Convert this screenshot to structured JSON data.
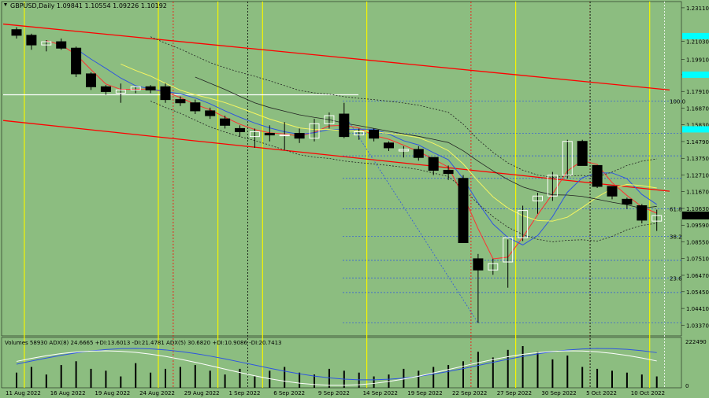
{
  "header": {
    "text": "GBPUSD,Daily  1.09841 1.10554 1.09226 1.10192"
  },
  "volume_panel": {
    "title": "Volumes 58930  ADX(8) 24.6665 +DI:13.6013 -DI:21.4781  ADX(5) 30.6820 +DI:10.9086 -DI:20.7413",
    "axis_labels": [
      "222490",
      "0"
    ]
  },
  "colors": {
    "background": "#8cbd80",
    "bull": "#ffffff",
    "bear": "#000000",
    "channel": "#ff0000",
    "blue_line": "#2e55e0",
    "yellow_line": "#f5f560",
    "accent": "#00ffff",
    "vertical_yellow": "#f5f500",
    "vertical_red": "#ff0000"
  },
  "chart_data": {
    "type": "candlestick",
    "symbol": "GBPUSD",
    "timeframe": "Daily",
    "y_ticks": [
      "1.23110",
      "1.21030",
      "1.19910",
      "1.18950",
      "1.17910",
      "1.16870",
      "1.15830",
      "1.14790",
      "1.13750",
      "1.12710",
      "1.11670",
      "1.10630",
      "1.09590",
      "1.08550",
      "1.07510",
      "1.06470",
      "1.05450",
      "1.04410",
      "1.03370"
    ],
    "price_tag": "1.10192",
    "x_labels": [
      "11 Aug 2022",
      "16 Aug 2022",
      "19 Aug 2022",
      "24 Aug 2022",
      "29 Aug 2022",
      "1 Sep 2022",
      "6 Sep 2022",
      "9 Sep 2022",
      "14 Sep 2022",
      "19 Sep 2022",
      "22 Sep 2022",
      "27 Sep 2022",
      "30 Sep 2022",
      "5 Oct 2022",
      "10 Oct 2022"
    ],
    "fib_labels": [
      "100.0",
      "61.8",
      "38.2",
      "23.6"
    ],
    "candles": [
      {
        "o": 1.2175,
        "h": 1.219,
        "l": 1.212,
        "c": 1.214
      },
      {
        "o": 1.214,
        "h": 1.215,
        "l": 1.205,
        "c": 1.208
      },
      {
        "o": 1.208,
        "h": 1.211,
        "l": 1.204,
        "c": 1.21
      },
      {
        "o": 1.21,
        "h": 1.212,
        "l": 1.205,
        "c": 1.206
      },
      {
        "o": 1.206,
        "h": 1.207,
        "l": 1.188,
        "c": 1.19
      },
      {
        "o": 1.19,
        "h": 1.191,
        "l": 1.18,
        "c": 1.182
      },
      {
        "o": 1.182,
        "h": 1.183,
        "l": 1.177,
        "c": 1.179
      },
      {
        "o": 1.178,
        "h": 1.184,
        "l": 1.172,
        "c": 1.18
      },
      {
        "o": 1.18,
        "h": 1.182,
        "l": 1.178,
        "c": 1.182
      },
      {
        "o": 1.182,
        "h": 1.183,
        "l": 1.178,
        "c": 1.18
      },
      {
        "o": 1.182,
        "h": 1.184,
        "l": 1.172,
        "c": 1.174
      },
      {
        "o": 1.174,
        "h": 1.176,
        "l": 1.17,
        "c": 1.172
      },
      {
        "o": 1.172,
        "h": 1.174,
        "l": 1.165,
        "c": 1.167
      },
      {
        "o": 1.167,
        "h": 1.169,
        "l": 1.162,
        "c": 1.164
      },
      {
        "o": 1.162,
        "h": 1.164,
        "l": 1.156,
        "c": 1.158
      },
      {
        "o": 1.156,
        "h": 1.158,
        "l": 1.151,
        "c": 1.154
      },
      {
        "o": 1.151,
        "h": 1.156,
        "l": 1.144,
        "c": 1.154
      },
      {
        "o": 1.153,
        "h": 1.158,
        "l": 1.148,
        "c": 1.152
      },
      {
        "o": 1.152,
        "h": 1.16,
        "l": 1.143,
        "c": 1.152
      },
      {
        "o": 1.153,
        "h": 1.156,
        "l": 1.147,
        "c": 1.15
      },
      {
        "o": 1.15,
        "h": 1.162,
        "l": 1.148,
        "c": 1.159
      },
      {
        "o": 1.159,
        "h": 1.166,
        "l": 1.156,
        "c": 1.164
      },
      {
        "o": 1.165,
        "h": 1.172,
        "l": 1.15,
        "c": 1.151
      },
      {
        "o": 1.152,
        "h": 1.156,
        "l": 1.149,
        "c": 1.154
      },
      {
        "o": 1.155,
        "h": 1.156,
        "l": 1.148,
        "c": 1.15
      },
      {
        "o": 1.147,
        "h": 1.148,
        "l": 1.142,
        "c": 1.144
      },
      {
        "o": 1.142,
        "h": 1.145,
        "l": 1.138,
        "c": 1.143
      },
      {
        "o": 1.143,
        "h": 1.145,
        "l": 1.136,
        "c": 1.138
      },
      {
        "o": 1.138,
        "h": 1.138,
        "l": 1.127,
        "c": 1.13
      },
      {
        "o": 1.13,
        "h": 1.133,
        "l": 1.124,
        "c": 1.128
      },
      {
        "o": 1.125,
        "h": 1.127,
        "l": 1.085,
        "c": 1.085
      },
      {
        "o": 1.075,
        "h": 1.078,
        "l": 1.035,
        "c": 1.068
      },
      {
        "o": 1.068,
        "h": 1.075,
        "l": 1.065,
        "c": 1.072
      },
      {
        "o": 1.073,
        "h": 1.087,
        "l": 1.057,
        "c": 1.088
      },
      {
        "o": 1.088,
        "h": 1.108,
        "l": 1.086,
        "c": 1.105
      },
      {
        "o": 1.111,
        "h": 1.116,
        "l": 1.103,
        "c": 1.114
      },
      {
        "o": 1.114,
        "h": 1.129,
        "l": 1.111,
        "c": 1.127
      },
      {
        "o": 1.127,
        "h": 1.149,
        "l": 1.125,
        "c": 1.148
      },
      {
        "o": 1.148,
        "h": 1.149,
        "l": 1.134,
        "c": 1.133
      },
      {
        "o": 1.133,
        "h": 1.133,
        "l": 1.119,
        "c": 1.12
      },
      {
        "o": 1.12,
        "h": 1.12,
        "l": 1.112,
        "c": 1.114
      },
      {
        "o": 1.112,
        "h": 1.113,
        "l": 1.106,
        "c": 1.109
      },
      {
        "o": 1.108,
        "h": 1.109,
        "l": 1.097,
        "c": 1.099
      },
      {
        "o": 1.0984,
        "h": 1.1055,
        "l": 1.0923,
        "c": 1.1019
      }
    ],
    "volumes": [
      40,
      55,
      35,
      60,
      70,
      50,
      45,
      30,
      65,
      40,
      50,
      55,
      60,
      45,
      35,
      50,
      30,
      45,
      55,
      40,
      35,
      50,
      45,
      40,
      30,
      35,
      50,
      45,
      55,
      60,
      70,
      95,
      80,
      100,
      110,
      95,
      75,
      85,
      55,
      50,
      45,
      40,
      35,
      30
    ],
    "vertical_yellow_idx": [
      1,
      10,
      14,
      17,
      24,
      34,
      43
    ],
    "vertical_red_idx": [
      11,
      31,
      39
    ],
    "vertical_black_idx": [
      16,
      39
    ],
    "vertical_white_idx": [
      44
    ]
  }
}
